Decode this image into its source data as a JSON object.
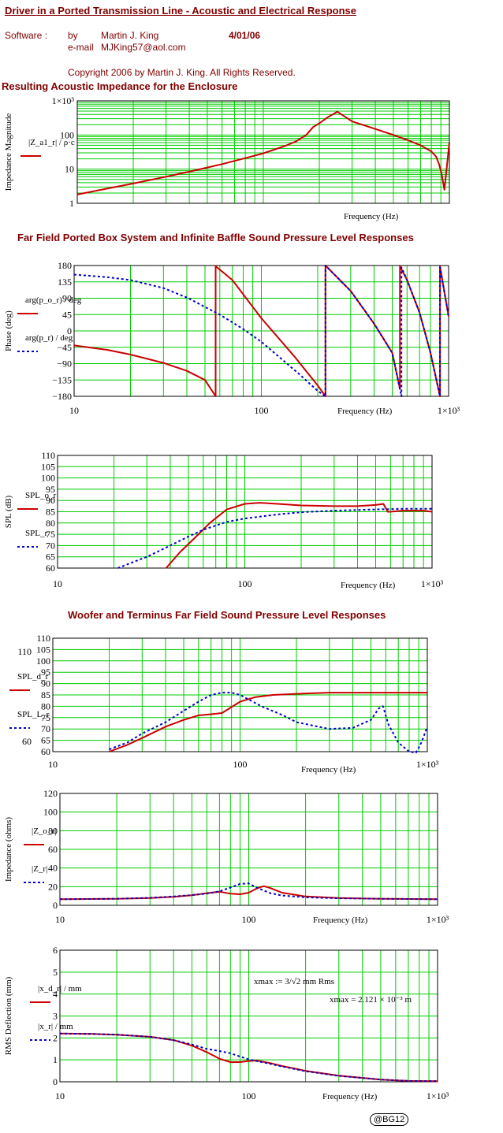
{
  "header": {
    "title": "Driver in a Ported Transmission Line - Acoustic and Electrical Response",
    "software_label": "Software :",
    "by_label": "by",
    "author": "Martin J. King",
    "date": "4/01/06",
    "email_label": "e-mail",
    "email": "MJKing57@aol.com",
    "copyright": "Copyright 2006 by Martin J. King. All Rights Reserved."
  },
  "sections": {
    "impedance_title": "Resulting Acoustic Impedance for the Enclosure",
    "farfield_title": "Far Field Ported Box System and Infinite Baffle Sound Pressure Level Responses",
    "woofer_title": "Woofer and Terminus Far Field Sound Pressure Level Responses"
  },
  "stamp": "@BG12",
  "colors": {
    "red": "#cc0000",
    "blue": "#0000cc",
    "grid": "#00cc00",
    "maroon": "#800000"
  },
  "chart_data": [
    {
      "id": "acoustic-impedance",
      "type": "line",
      "xscale": "log",
      "yscale": "log",
      "xlim": [
        10,
        1000
      ],
      "ylim": [
        1,
        1000
      ],
      "xlabel": "Frequency (Hz)",
      "ylabel": "Impedance Magnitude",
      "yticks": [
        "1",
        "10",
        "100",
        "1×10³"
      ],
      "xticks": [],
      "legend": [
        {
          "label": "|Z_a1_r| / ρ·c",
          "color": "#cc0000"
        }
      ],
      "series": [
        {
          "color": "#cc0000",
          "dash": false,
          "x": [
            10,
            15,
            20,
            30,
            40,
            60,
            80,
            100,
            130,
            150,
            170,
            185,
            200,
            220,
            250,
            300,
            400,
            500,
            600,
            700,
            800,
            850,
            880,
            910,
            940,
            1000
          ],
          "y": [
            1.8,
            2.8,
            3.8,
            6,
            8.4,
            14,
            21,
            29,
            47,
            65,
            100,
            170,
            220,
            320,
            480,
            250,
            150,
            100,
            70,
            50,
            33,
            23,
            14,
            7,
            2.5,
            60
          ]
        }
      ]
    },
    {
      "id": "phase",
      "type": "line",
      "xscale": "log",
      "xlim": [
        10,
        1000
      ],
      "ylim": [
        -180,
        180
      ],
      "xlabel": "Frequency (Hz)",
      "ylabel": "Phase (deg)",
      "yticks": [
        "180",
        "135",
        "90",
        "45",
        "0",
        "−45",
        "−90",
        "−135",
        "−180"
      ],
      "xticks": [
        "10",
        "100",
        "1×10³"
      ],
      "legend": [
        {
          "label": "arg(p_o_r) / deg",
          "color": "#cc0000"
        },
        {
          "label": "arg(p_r) / deg",
          "color": "#0000cc"
        }
      ],
      "series": [
        {
          "color": "#cc0000",
          "dash": false,
          "x": [
            10,
            15,
            20,
            30,
            40,
            50,
            57,
            57.01,
            70,
            100,
            150,
            200,
            220,
            220.01,
            300,
            400,
            500,
            550,
            550.01,
            600,
            700,
            800,
            900,
            900.01,
            1000
          ],
          "y": [
            -40,
            -52,
            -65,
            -88,
            -110,
            -135,
            -180,
            178,
            140,
            35,
            -70,
            -150,
            -180,
            180,
            110,
            20,
            -60,
            -160,
            178,
            140,
            50,
            -60,
            -180,
            178,
            40
          ]
        },
        {
          "color": "#0000cc",
          "dash": true,
          "x": [
            10,
            15,
            20,
            30,
            40,
            60,
            80,
            100,
            130,
            160,
            200,
            220,
            220.01,
            300,
            400,
            500,
            560,
            560.01,
            600,
            700,
            800,
            900,
            900.01,
            1000
          ],
          "y": [
            155,
            148,
            140,
            118,
            92,
            45,
            5,
            -30,
            -80,
            -120,
            -165,
            -180,
            180,
            110,
            20,
            -60,
            -180,
            175,
            140,
            50,
            -60,
            -180,
            175,
            40
          ]
        }
      ]
    },
    {
      "id": "spl-ported",
      "type": "line",
      "xscale": "log",
      "xlim": [
        10,
        1000
      ],
      "ylim": [
        60,
        110
      ],
      "xlabel": "Frequency (Hz)",
      "ylabel": "SPL (dB)",
      "yticks": [
        "110",
        "105",
        "100",
        "95",
        "90",
        "85",
        "80",
        "75",
        "70",
        "65",
        "60"
      ],
      "xticks": [
        "10",
        "100",
        "1×10³"
      ],
      "legend": [
        {
          "label": "SPL_o_r",
          "color": "#cc0000"
        },
        {
          "label": "SPL_r",
          "color": "#0000cc"
        }
      ],
      "series": [
        {
          "color": "#cc0000",
          "dash": false,
          "x": [
            38,
            45,
            55,
            65,
            80,
            100,
            120,
            150,
            200,
            300,
            400,
            500,
            550,
            580,
            600,
            700,
            800,
            900,
            1000
          ],
          "y": [
            60,
            67,
            74,
            80,
            86,
            88.5,
            89,
            88.5,
            87.8,
            87.5,
            87.5,
            88,
            88.5,
            85,
            85,
            85.5,
            85.5,
            85.5,
            85
          ]
        },
        {
          "color": "#0000cc",
          "dash": true,
          "x": [
            21,
            25,
            30,
            40,
            50,
            60,
            80,
            100,
            150,
            200,
            300,
            500,
            700,
            1000
          ],
          "y": [
            60,
            62.5,
            65,
            70,
            74,
            77,
            80.5,
            82,
            83.8,
            84.8,
            85.5,
            86,
            86.3,
            86.3
          ]
        }
      ]
    },
    {
      "id": "spl-woofer-terminus",
      "type": "line",
      "xscale": "log",
      "xlim": [
        10,
        1000
      ],
      "ylim": [
        60,
        110
      ],
      "xlabel": "Frequency (Hz)",
      "ylabel": "",
      "yticks": [
        "110",
        "105",
        "100",
        "95",
        "90",
        "85",
        "80",
        "75",
        "70",
        "65",
        "60"
      ],
      "outer_yticks": [
        "110",
        "60"
      ],
      "xticks": [
        "10",
        "100",
        "1×10³"
      ],
      "legend": [
        {
          "label": "SPL_d_r",
          "color": "#cc0000"
        },
        {
          "label": "SPL_L_r",
          "color": "#0000cc"
        }
      ],
      "series": [
        {
          "color": "#cc0000",
          "dash": false,
          "x": [
            20,
            25,
            30,
            40,
            50,
            60,
            70,
            80,
            100,
            120,
            150,
            200,
            300,
            500,
            1000
          ],
          "y": [
            60,
            63,
            66,
            71,
            74,
            76,
            76.5,
            77,
            82,
            84,
            85,
            85.5,
            86,
            86,
            86
          ]
        },
        {
          "color": "#0000cc",
          "dash": true,
          "x": [
            20,
            25,
            30,
            40,
            50,
            60,
            70,
            80,
            90,
            100,
            130,
            170,
            200,
            300,
            400,
            500,
            550,
            580,
            620,
            700,
            800,
            870,
            930,
            1000
          ],
          "y": [
            61,
            64,
            68,
            73,
            78,
            82,
            85,
            86,
            86,
            85,
            80,
            76,
            73,
            70,
            70.5,
            74,
            79,
            80,
            72,
            64,
            60,
            59.5,
            64,
            71
          ]
        }
      ]
    },
    {
      "id": "electrical-impedance",
      "type": "line",
      "xscale": "log",
      "xlim": [
        10,
        1000
      ],
      "ylim": [
        0,
        120
      ],
      "xlabel": "Frequency (Hz)",
      "ylabel": "Impedance (ohms)",
      "yticks": [
        "120",
        "100",
        "80",
        "60",
        "40",
        "20",
        "0"
      ],
      "xticks": [
        "10",
        "100",
        "1×10³"
      ],
      "legend": [
        {
          "label": "|Z_o_r|",
          "color": "#cc0000"
        },
        {
          "label": "|Z_r|",
          "color": "#0000cc"
        }
      ],
      "series": [
        {
          "color": "#cc0000",
          "dash": false,
          "x": [
            10,
            20,
            30,
            40,
            50,
            60,
            70,
            80,
            90,
            100,
            110,
            120,
            130,
            150,
            200,
            300,
            500,
            1000
          ],
          "y": [
            6.5,
            7,
            7.8,
            9,
            10.8,
            13,
            14.5,
            12.5,
            11.8,
            13.5,
            18,
            20.5,
            18.5,
            13.5,
            9.5,
            7.8,
            7,
            6.5
          ]
        },
        {
          "color": "#0000cc",
          "dash": true,
          "x": [
            10,
            20,
            30,
            40,
            50,
            60,
            70,
            80,
            90,
            100,
            110,
            130,
            150,
            200,
            300,
            500,
            1000
          ],
          "y": [
            6.5,
            7,
            8,
            9.5,
            11,
            12.5,
            15,
            19,
            23,
            23.5,
            19,
            13,
            10.5,
            8.5,
            7.5,
            7,
            6.5
          ]
        }
      ]
    },
    {
      "id": "rms-deflection",
      "type": "line",
      "xscale": "log",
      "xlim": [
        10,
        1000
      ],
      "ylim": [
        0,
        6
      ],
      "xlabel": "Frequency (Hz)",
      "ylabel": "RMS Deflection (mm)",
      "yticks": [
        "6",
        "5",
        "4",
        "3",
        "2",
        "1",
        "0"
      ],
      "xticks": [
        "10",
        "100",
        "1×10³"
      ],
      "legend": [
        {
          "label": "|x_d_r| / mm",
          "color": "#cc0000"
        },
        {
          "label": "|x_r| / mm",
          "color": "#0000cc"
        }
      ],
      "annotation_def": "xmax := 3/√2 mm Rms",
      "annotation_val": "xmax = 2.121 × 10⁻³ m",
      "series": [
        {
          "color": "#cc0000",
          "dash": false,
          "x": [
            10,
            15,
            20,
            30,
            40,
            50,
            60,
            70,
            80,
            90,
            100,
            110,
            130,
            150,
            200,
            300,
            500,
            700,
            1000
          ],
          "y": [
            2.2,
            2.18,
            2.15,
            2.05,
            1.9,
            1.65,
            1.35,
            1.05,
            0.9,
            0.9,
            0.95,
            0.97,
            0.85,
            0.72,
            0.5,
            0.28,
            0.1,
            0.04,
            0.03
          ]
        },
        {
          "color": "#0000cc",
          "dash": true,
          "x": [
            10,
            15,
            20,
            30,
            40,
            50,
            60,
            70,
            80,
            90,
            100,
            120,
            150,
            200,
            300,
            500,
            700,
            1000
          ],
          "y": [
            2.2,
            2.18,
            2.15,
            2.05,
            1.9,
            1.7,
            1.5,
            1.4,
            1.3,
            1.15,
            1.02,
            0.88,
            0.7,
            0.48,
            0.27,
            0.1,
            0.04,
            0.03
          ]
        }
      ]
    }
  ]
}
